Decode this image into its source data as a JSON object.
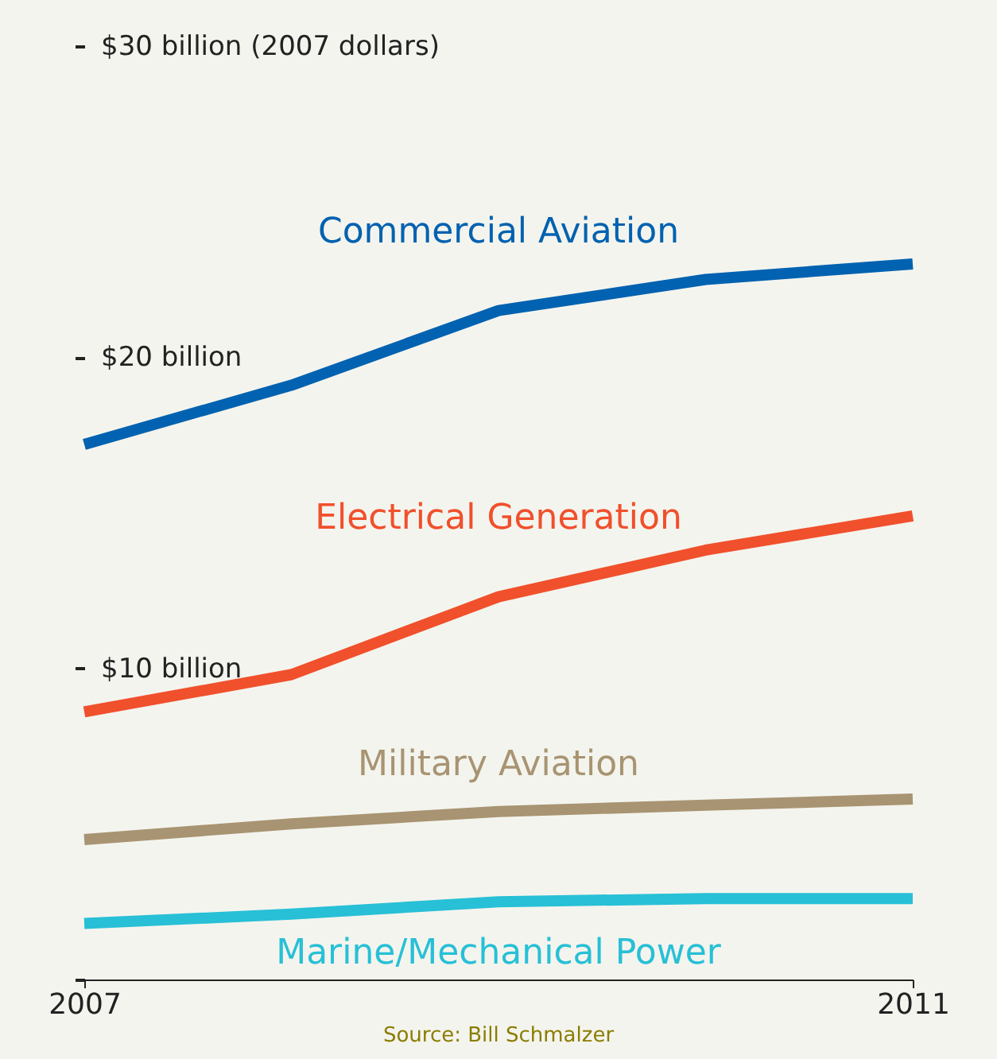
{
  "chart_data": {
    "type": "line",
    "x": [
      2007,
      2008,
      2009,
      2010,
      2011
    ],
    "series": [
      {
        "name": "Commercial Aviation",
        "color": "#0062b0",
        "values": [
          17.2,
          19.1,
          21.5,
          22.5,
          23.0
        ]
      },
      {
        "name": "Electrical Generation",
        "color": "#f0502c",
        "values": [
          8.6,
          9.8,
          12.3,
          13.8,
          14.9
        ]
      },
      {
        "name": "Military Aviation",
        "color": "#a89472",
        "values": [
          4.5,
          5.0,
          5.4,
          5.6,
          5.8
        ]
      },
      {
        "name": "Marine/Mechanical Power",
        "color": "#27c0d6",
        "values": [
          1.8,
          2.1,
          2.5,
          2.6,
          2.6
        ]
      }
    ],
    "xlim": [
      2007,
      2011
    ],
    "xticks": [
      2007,
      2011
    ],
    "ylim": [
      0,
      30
    ],
    "yticks": [
      {
        "value": 0,
        "label": null
      },
      {
        "value": 10,
        "label": "$10 billion"
      },
      {
        "value": 20,
        "label": "$20 billion"
      },
      {
        "value": 30,
        "label": "$30 billion (2007 dollars)"
      }
    ],
    "annotations": [
      "Source: Bill Schmalzer"
    ],
    "grid": false,
    "legend": false,
    "marker": "none",
    "line_style": "solid"
  }
}
